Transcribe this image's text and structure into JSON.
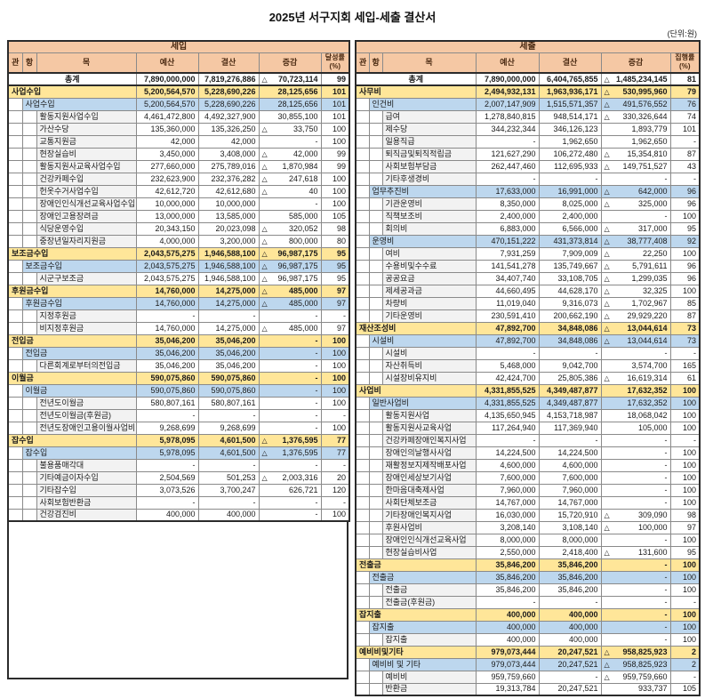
{
  "title": "2025년 서구지회 세입-세출 결산서",
  "unit_label": "(단위:원)",
  "colors": {
    "header_bg": "#F5C8A4",
    "header_text": "#4A2A12",
    "level1_bg": "#FFE699",
    "level2_bg": "#BDD7EE",
    "label_bg": "#F2F2F2",
    "frame": "#2B2B2B",
    "grid_line": "#8A8A8A"
  },
  "columns": {
    "gwan": "관",
    "hang": "항",
    "mok": "목",
    "budget": "예산",
    "actual": "결산",
    "diff": "증감"
  },
  "tables": [
    {
      "name": "세입",
      "rate_header": "달성률",
      "rate_unit": "(%)",
      "rows": [
        {
          "level": "total",
          "label": "총계",
          "budget": "7,890,000,000",
          "actual": "7,819,276,886",
          "mark": "△",
          "diff": "70,723,114",
          "rate": "99"
        },
        {
          "level": "1",
          "label": "사업수입",
          "budget": "5,200,564,570",
          "actual": "5,228,690,226",
          "mark": "",
          "diff": "28,125,656",
          "rate": "101"
        },
        {
          "level": "2",
          "label": "사업수입",
          "budget": "5,200,564,570",
          "actual": "5,228,690,226",
          "mark": "",
          "diff": "28,125,656",
          "rate": "101"
        },
        {
          "level": "3",
          "label": "활동지원사업수입",
          "budget": "4,461,472,800",
          "actual": "4,492,327,900",
          "mark": "",
          "diff": "30,855,100",
          "rate": "101"
        },
        {
          "level": "3",
          "label": "가산수당",
          "budget": "135,360,000",
          "actual": "135,326,250",
          "mark": "△",
          "diff": "33,750",
          "rate": "100"
        },
        {
          "level": "3",
          "label": "교통지원금",
          "budget": "42,000",
          "actual": "42,000",
          "mark": "",
          "diff": "-",
          "rate": "100"
        },
        {
          "level": "3",
          "label": "현장실습비",
          "budget": "3,450,000",
          "actual": "3,408,000",
          "mark": "△",
          "diff": "42,000",
          "rate": "99"
        },
        {
          "level": "3",
          "label": "활동지원사교육사업수입",
          "budget": "277,660,000",
          "actual": "275,789,016",
          "mark": "△",
          "diff": "1,870,984",
          "rate": "99"
        },
        {
          "level": "3",
          "label": "건강카페수입",
          "budget": "232,623,900",
          "actual": "232,376,282",
          "mark": "△",
          "diff": "247,618",
          "rate": "100"
        },
        {
          "level": "3",
          "label": "헌옷수거사업수입",
          "budget": "42,612,720",
          "actual": "42,612,680",
          "mark": "△",
          "diff": "40",
          "rate": "100"
        },
        {
          "level": "3",
          "label": "장애인인식개선교육사업수입",
          "budget": "10,000,000",
          "actual": "10,000,000",
          "mark": "",
          "diff": "-",
          "rate": "100"
        },
        {
          "level": "3",
          "label": "장애인고용장려금",
          "budget": "13,000,000",
          "actual": "13,585,000",
          "mark": "",
          "diff": "585,000",
          "rate": "105"
        },
        {
          "level": "3",
          "label": "식당운영수입",
          "budget": "20,343,150",
          "actual": "20,023,098",
          "mark": "△",
          "diff": "320,052",
          "rate": "98"
        },
        {
          "level": "3",
          "label": "중장년일자리지원금",
          "budget": "4,000,000",
          "actual": "3,200,000",
          "mark": "△",
          "diff": "800,000",
          "rate": "80"
        },
        {
          "level": "1",
          "label": "보조금수입",
          "budget": "2,043,575,275",
          "actual": "1,946,588,100",
          "mark": "△",
          "diff": "96,987,175",
          "rate": "95"
        },
        {
          "level": "2",
          "label": "보조금수입",
          "budget": "2,043,575,275",
          "actual": "1,946,588,100",
          "mark": "△",
          "diff": "96,987,175",
          "rate": "95"
        },
        {
          "level": "3",
          "label": "시군구보조금",
          "budget": "2,043,575,275",
          "actual": "1,946,588,100",
          "mark": "△",
          "diff": "96,987,175",
          "rate": "95"
        },
        {
          "level": "1",
          "label": "후원금수입",
          "budget": "14,760,000",
          "actual": "14,275,000",
          "mark": "△",
          "diff": "485,000",
          "rate": "97"
        },
        {
          "level": "2",
          "label": "후원금수입",
          "budget": "14,760,000",
          "actual": "14,275,000",
          "mark": "△",
          "diff": "485,000",
          "rate": "97"
        },
        {
          "level": "3",
          "label": "지정후원금",
          "budget": "-",
          "actual": "-",
          "mark": "",
          "diff": "-",
          "rate": "-"
        },
        {
          "level": "3",
          "label": "비지정후원금",
          "budget": "14,760,000",
          "actual": "14,275,000",
          "mark": "△",
          "diff": "485,000",
          "rate": "97"
        },
        {
          "level": "1",
          "label": "전입금",
          "budget": "35,046,200",
          "actual": "35,046,200",
          "mark": "",
          "diff": "-",
          "rate": "100"
        },
        {
          "level": "2",
          "label": "전입금",
          "budget": "35,046,200",
          "actual": "35,046,200",
          "mark": "",
          "diff": "-",
          "rate": "100"
        },
        {
          "level": "3",
          "label": "다른회계로부터의전입금",
          "budget": "35,046,200",
          "actual": "35,046,200",
          "mark": "",
          "diff": "-",
          "rate": "100"
        },
        {
          "level": "1",
          "label": "이월금",
          "budget": "590,075,860",
          "actual": "590,075,860",
          "mark": "",
          "diff": "-",
          "rate": "100"
        },
        {
          "level": "2",
          "label": "이월금",
          "budget": "590,075,860",
          "actual": "590,075,860",
          "mark": "",
          "diff": "-",
          "rate": "100"
        },
        {
          "level": "3",
          "label": "전년도이월금",
          "budget": "580,807,161",
          "actual": "580,807,161",
          "mark": "",
          "diff": "-",
          "rate": "100"
        },
        {
          "level": "3",
          "label": "전년도이월금(후원금)",
          "budget": "-",
          "actual": "-",
          "mark": "",
          "diff": "-",
          "rate": "-"
        },
        {
          "level": "3",
          "label": "전년도장애인고용이월사업비",
          "budget": "9,268,699",
          "actual": "9,268,699",
          "mark": "",
          "diff": "-",
          "rate": "100"
        },
        {
          "level": "1",
          "label": "잡수입",
          "budget": "5,978,095",
          "actual": "4,601,500",
          "mark": "△",
          "diff": "1,376,595",
          "rate": "77"
        },
        {
          "level": "2",
          "label": "잡수입",
          "budget": "5,978,095",
          "actual": "4,601,500",
          "mark": "△",
          "diff": "1,376,595",
          "rate": "77"
        },
        {
          "level": "3",
          "label": "불용품매각대",
          "budget": "-",
          "actual": "-",
          "mark": "",
          "diff": "-",
          "rate": "-"
        },
        {
          "level": "3",
          "label": "기타예금이자수입",
          "budget": "2,504,569",
          "actual": "501,253",
          "mark": "△",
          "diff": "2,003,316",
          "rate": "20"
        },
        {
          "level": "3",
          "label": "기타잡수입",
          "budget": "3,073,526",
          "actual": "3,700,247",
          "mark": "",
          "diff": "626,721",
          "rate": "120"
        },
        {
          "level": "3",
          "label": "사회보험반환금",
          "budget": "-",
          "actual": "-",
          "mark": "",
          "diff": "-",
          "rate": "-"
        },
        {
          "level": "3",
          "label": "건강검진비",
          "budget": "400,000",
          "actual": "400,000",
          "mark": "",
          "diff": "-",
          "rate": "100"
        }
      ]
    },
    {
      "name": "세출",
      "rate_header": "집행률",
      "rate_unit": "(%)",
      "rows": [
        {
          "level": "total",
          "label": "총계",
          "budget": "7,890,000,000",
          "actual": "6,404,765,855",
          "mark": "△",
          "diff": "1,485,234,145",
          "rate": "81"
        },
        {
          "level": "1",
          "label": "사무비",
          "budget": "2,494,932,131",
          "actual": "1,963,936,171",
          "mark": "△",
          "diff": "530,995,960",
          "rate": "79"
        },
        {
          "level": "2",
          "label": "인건비",
          "budget": "2,007,147,909",
          "actual": "1,515,571,357",
          "mark": "△",
          "diff": "491,576,552",
          "rate": "76"
        },
        {
          "level": "3",
          "label": "급여",
          "budget": "1,278,840,815",
          "actual": "948,514,171",
          "mark": "△",
          "diff": "330,326,644",
          "rate": "74"
        },
        {
          "level": "3",
          "label": "제수당",
          "budget": "344,232,344",
          "actual": "346,126,123",
          "mark": "",
          "diff": "1,893,779",
          "rate": "101"
        },
        {
          "level": "3",
          "label": "일용직급",
          "budget": "-",
          "actual": "1,962,650",
          "mark": "",
          "diff": "1,962,650",
          "rate": "-"
        },
        {
          "level": "3",
          "label": "퇴직금및퇴직적립금",
          "budget": "121,627,290",
          "actual": "106,272,480",
          "mark": "△",
          "diff": "15,354,810",
          "rate": "87"
        },
        {
          "level": "3",
          "label": "사회보험부담금",
          "budget": "262,447,460",
          "actual": "112,695,933",
          "mark": "△",
          "diff": "149,751,527",
          "rate": "43"
        },
        {
          "level": "3",
          "label": "기타후생경비",
          "budget": "-",
          "actual": "-",
          "mark": "",
          "diff": "-",
          "rate": "-"
        },
        {
          "level": "2",
          "label": "업무추진비",
          "budget": "17,633,000",
          "actual": "16,991,000",
          "mark": "△",
          "diff": "642,000",
          "rate": "96"
        },
        {
          "level": "3",
          "label": "기관운영비",
          "budget": "8,350,000",
          "actual": "8,025,000",
          "mark": "△",
          "diff": "325,000",
          "rate": "96"
        },
        {
          "level": "3",
          "label": "직책보조비",
          "budget": "2,400,000",
          "actual": "2,400,000",
          "mark": "",
          "diff": "-",
          "rate": "100"
        },
        {
          "level": "3",
          "label": "회의비",
          "budget": "6,883,000",
          "actual": "6,566,000",
          "mark": "△",
          "diff": "317,000",
          "rate": "95"
        },
        {
          "level": "2",
          "label": "운영비",
          "budget": "470,151,222",
          "actual": "431,373,814",
          "mark": "△",
          "diff": "38,777,408",
          "rate": "92"
        },
        {
          "level": "3",
          "label": "여비",
          "budget": "7,931,259",
          "actual": "7,909,009",
          "mark": "△",
          "diff": "22,250",
          "rate": "100"
        },
        {
          "level": "3",
          "label": "수용비및수수료",
          "budget": "141,541,278",
          "actual": "135,749,667",
          "mark": "△",
          "diff": "5,791,611",
          "rate": "96"
        },
        {
          "level": "3",
          "label": "공공요금",
          "budget": "34,407,740",
          "actual": "33,108,705",
          "mark": "△",
          "diff": "1,299,035",
          "rate": "96"
        },
        {
          "level": "3",
          "label": "제세공과금",
          "budget": "44,660,495",
          "actual": "44,628,170",
          "mark": "△",
          "diff": "32,325",
          "rate": "100"
        },
        {
          "level": "3",
          "label": "차량비",
          "budget": "11,019,040",
          "actual": "9,316,073",
          "mark": "△",
          "diff": "1,702,967",
          "rate": "85"
        },
        {
          "level": "3",
          "label": "기타운영비",
          "budget": "230,591,410",
          "actual": "200,662,190",
          "mark": "△",
          "diff": "29,929,220",
          "rate": "87"
        },
        {
          "level": "1",
          "label": "재산조성비",
          "budget": "47,892,700",
          "actual": "34,848,086",
          "mark": "△",
          "diff": "13,044,614",
          "rate": "73"
        },
        {
          "level": "2",
          "label": "시설비",
          "budget": "47,892,700",
          "actual": "34,848,086",
          "mark": "△",
          "diff": "13,044,614",
          "rate": "73"
        },
        {
          "level": "3",
          "label": "시설비",
          "budget": "-",
          "actual": "-",
          "mark": "",
          "diff": "-",
          "rate": "-"
        },
        {
          "level": "3",
          "label": "자산취득비",
          "budget": "5,468,000",
          "actual": "9,042,700",
          "mark": "",
          "diff": "3,574,700",
          "rate": "165"
        },
        {
          "level": "3",
          "label": "시설장비유지비",
          "budget": "42,424,700",
          "actual": "25,805,386",
          "mark": "△",
          "diff": "16,619,314",
          "rate": "61"
        },
        {
          "level": "1",
          "label": "사업비",
          "budget": "4,331,855,525",
          "actual": "4,349,487,877",
          "mark": "",
          "diff": "17,632,352",
          "rate": "100"
        },
        {
          "level": "2",
          "label": "일반사업비",
          "budget": "4,331,855,525",
          "actual": "4,349,487,877",
          "mark": "",
          "diff": "17,632,352",
          "rate": "100"
        },
        {
          "level": "3",
          "label": "활동지원사업",
          "budget": "4,135,650,945",
          "actual": "4,153,718,987",
          "mark": "",
          "diff": "18,068,042",
          "rate": "100"
        },
        {
          "level": "3",
          "label": "활동지원사교육사업",
          "budget": "117,264,940",
          "actual": "117,369,940",
          "mark": "",
          "diff": "105,000",
          "rate": "100"
        },
        {
          "level": "3",
          "label": "건강카페장애인복지사업",
          "budget": "-",
          "actual": "-",
          "mark": "",
          "diff": "-",
          "rate": "-"
        },
        {
          "level": "3",
          "label": "장애인의날행사사업",
          "budget": "14,224,500",
          "actual": "14,224,500",
          "mark": "",
          "diff": "-",
          "rate": "100"
        },
        {
          "level": "3",
          "label": "재활정보지제작배포사업",
          "budget": "4,600,000",
          "actual": "4,600,000",
          "mark": "",
          "diff": "-",
          "rate": "100"
        },
        {
          "level": "3",
          "label": "장애인세상보기사업",
          "budget": "7,600,000",
          "actual": "7,600,000",
          "mark": "",
          "diff": "-",
          "rate": "100"
        },
        {
          "level": "3",
          "label": "한마음대축제사업",
          "budget": "7,960,000",
          "actual": "7,960,000",
          "mark": "",
          "diff": "-",
          "rate": "100"
        },
        {
          "level": "3",
          "label": "사회단체보조금",
          "budget": "14,767,000",
          "actual": "14,767,000",
          "mark": "",
          "diff": "-",
          "rate": "100"
        },
        {
          "level": "3",
          "label": "기타장애인복지사업",
          "budget": "16,030,000",
          "actual": "15,720,910",
          "mark": "△",
          "diff": "309,090",
          "rate": "98"
        },
        {
          "level": "3",
          "label": "후원사업비",
          "budget": "3,208,140",
          "actual": "3,108,140",
          "mark": "△",
          "diff": "100,000",
          "rate": "97"
        },
        {
          "level": "3",
          "label": "장애인인식개선교육사업",
          "budget": "8,000,000",
          "actual": "8,000,000",
          "mark": "",
          "diff": "-",
          "rate": "100"
        },
        {
          "level": "3",
          "label": "현장실습비사업",
          "budget": "2,550,000",
          "actual": "2,418,400",
          "mark": "△",
          "diff": "131,600",
          "rate": "95"
        },
        {
          "level": "1",
          "label": "전출금",
          "budget": "35,846,200",
          "actual": "35,846,200",
          "mark": "",
          "diff": "-",
          "rate": "100"
        },
        {
          "level": "2",
          "label": "전출금",
          "budget": "35,846,200",
          "actual": "35,846,200",
          "mark": "",
          "diff": "-",
          "rate": "100"
        },
        {
          "level": "3",
          "label": "전출금",
          "budget": "35,846,200",
          "actual": "35,846,200",
          "mark": "",
          "diff": "-",
          "rate": "100"
        },
        {
          "level": "3",
          "label": "전출금(후원금)",
          "budget": "-",
          "actual": "-",
          "mark": "",
          "diff": "-",
          "rate": "-"
        },
        {
          "level": "1",
          "label": "잡지출",
          "budget": "400,000",
          "actual": "400,000",
          "mark": "",
          "diff": "-",
          "rate": "100"
        },
        {
          "level": "2",
          "label": "잡지출",
          "budget": "400,000",
          "actual": "400,000",
          "mark": "",
          "diff": "-",
          "rate": "100"
        },
        {
          "level": "3",
          "label": "잡지출",
          "budget": "400,000",
          "actual": "400,000",
          "mark": "",
          "diff": "-",
          "rate": "100"
        },
        {
          "level": "1",
          "label": "예비비및기타",
          "budget": "979,073,444",
          "actual": "20,247,521",
          "mark": "△",
          "diff": "958,825,923",
          "rate": "2"
        },
        {
          "level": "2",
          "label": "예비비 및 기타",
          "budget": "979,073,444",
          "actual": "20,247,521",
          "mark": "△",
          "diff": "958,825,923",
          "rate": "2"
        },
        {
          "level": "3",
          "label": "예비비",
          "budget": "959,759,660",
          "actual": "-",
          "mark": "△",
          "diff": "959,759,660",
          "rate": "-"
        },
        {
          "level": "3",
          "label": "반환금",
          "budget": "19,313,784",
          "actual": "20,247,521",
          "mark": "",
          "diff": "933,737",
          "rate": "105"
        }
      ]
    }
  ]
}
